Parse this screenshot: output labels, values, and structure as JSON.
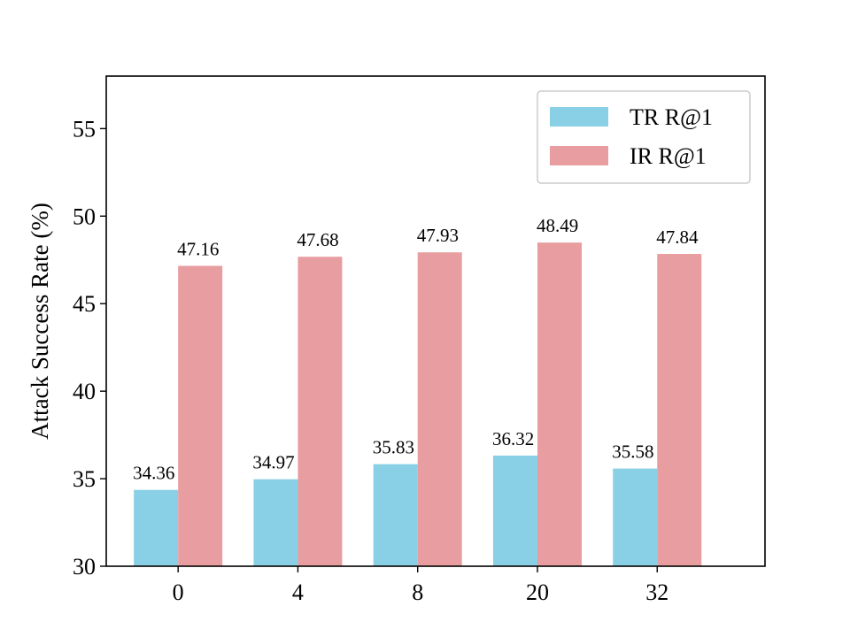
{
  "chart_data": {
    "type": "bar",
    "title": "",
    "xlabel": "",
    "ylabel": "Attack Success Rate (%)",
    "categories": [
      "0",
      "4",
      "8",
      "20",
      "32"
    ],
    "ylim": [
      30,
      58
    ],
    "yticks": [
      30,
      35,
      40,
      45,
      50,
      55
    ],
    "grid": false,
    "legend_position": "top-right",
    "data_labels": true,
    "series": [
      {
        "name": "TR R@1",
        "color": "#89CFE6",
        "values": [
          34.36,
          34.97,
          35.83,
          36.32,
          35.58
        ]
      },
      {
        "name": "IR R@1",
        "color": "#E89EA0",
        "values": [
          47.16,
          47.68,
          47.93,
          48.49,
          47.84
        ]
      }
    ]
  }
}
